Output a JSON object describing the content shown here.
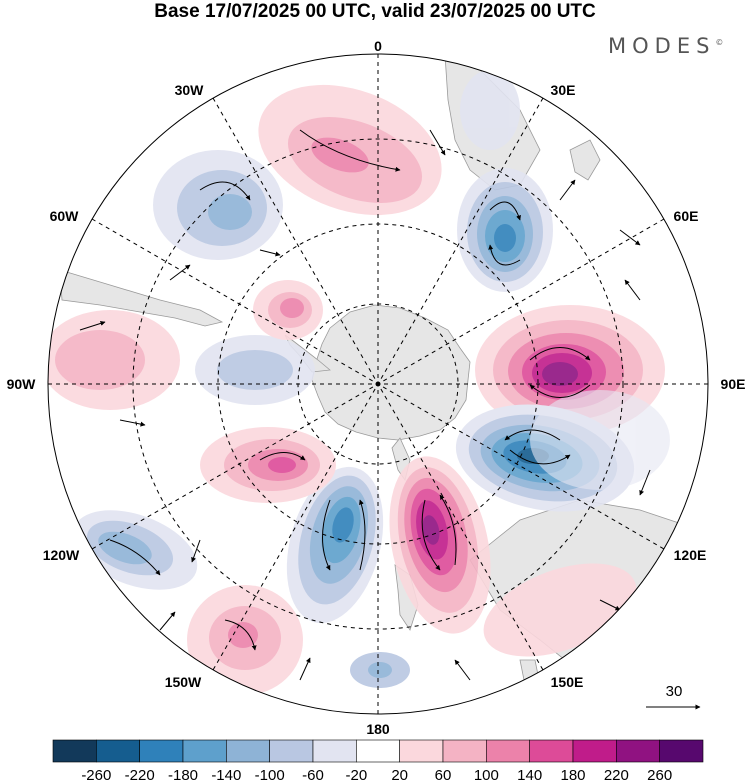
{
  "title": "Base 17/07/2025 00 UTC, valid 23/07/2025 00 UTC",
  "brand": "MODES",
  "brand_mark": "©",
  "longitude_labels": {
    "lon_0": "0",
    "lon_30e": "30E",
    "lon_60e": "60E",
    "lon_90e": "90E",
    "lon_120e": "120E",
    "lon_150e": "150E",
    "lon_180": "180",
    "lon_150w": "150W",
    "lon_120w": "120W",
    "lon_90w": "90W",
    "lon_60w": "60W",
    "lon_30w": "30W"
  },
  "reference_vector": {
    "label": "30"
  },
  "colorbar": {
    "labels": [
      "-260",
      "-220",
      "-180",
      "-140",
      "-100",
      "-60",
      "-20",
      "20",
      "60",
      "100",
      "140",
      "180",
      "220",
      "260"
    ],
    "colors": [
      "#12395a",
      "#155d8f",
      "#2f81ba",
      "#5ea0cc",
      "#8eb3d6",
      "#b9c7e2",
      "#e2e4f1",
      "#ffffff",
      "#fbd8dd",
      "#f4b3c4",
      "#ec82aa",
      "#dd4b98",
      "#c01c8a",
      "#901281",
      "#57086e"
    ]
  },
  "map": {
    "projection": "south polar stereographic",
    "land_color": "#e6e6e6",
    "anomaly_centers": [
      {
        "lon": 75,
        "level": 260
      },
      {
        "lon": 110,
        "level": -260
      },
      {
        "lon": 160,
        "level": 260
      },
      {
        "lon": -160,
        "level": -180
      },
      {
        "lon": -120,
        "level": 140
      },
      {
        "lon": -100,
        "level": -60
      },
      {
        "lon": 35,
        "level": -180
      },
      {
        "lon": 5,
        "level": 140
      },
      {
        "lon": -40,
        "level": -140
      },
      {
        "lon": -70,
        "level": 140
      },
      {
        "lon": -125,
        "level": -140
      },
      {
        "lon": -150,
        "level": 140
      },
      {
        "lon": 130,
        "level": 60
      },
      {
        "lon": -90,
        "level": 60
      }
    ]
  }
}
